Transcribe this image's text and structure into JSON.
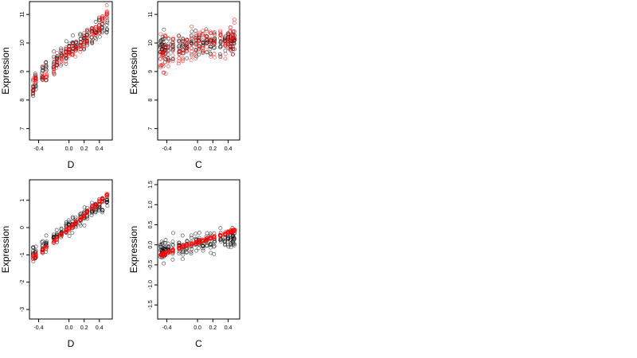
{
  "chart_data": [
    {
      "type": "scatter",
      "xlabel": "D",
      "ylabel": "Expression",
      "xlim": [
        -0.52,
        0.57
      ],
      "ylim": [
        6.6,
        11.45
      ],
      "xticks": [
        -0.4,
        0.0,
        0.2,
        0.4
      ],
      "yticks": [
        7,
        8,
        9,
        10,
        11
      ],
      "xtick_labels": [
        "-0.4",
        "0.0",
        "0.2",
        "0.4"
      ],
      "ytick_labels": [
        "7",
        "8",
        "9",
        "10",
        "11"
      ],
      "x_groups": [
        -0.47,
        -0.44,
        -0.35,
        -0.3,
        -0.2,
        -0.16,
        -0.1,
        -0.04,
        0.0,
        0.05,
        0.09,
        0.15,
        0.2,
        0.24,
        0.3,
        0.35,
        0.4,
        0.44,
        0.5
      ],
      "series": [
        {
          "color": "#000000",
          "trend": [
            [
              -0.47,
              8.6
            ],
            [
              -0.3,
              9.0
            ],
            [
              -0.1,
              9.5
            ],
            [
              0.0,
              9.75
            ],
            [
              0.2,
              10.1
            ],
            [
              0.4,
              10.5
            ],
            [
              0.5,
              10.7
            ]
          ],
          "spread": 0.55
        },
        {
          "color": "#ff0000",
          "trend": [
            [
              -0.47,
              8.55
            ],
            [
              -0.3,
              8.95
            ],
            [
              -0.1,
              9.4
            ],
            [
              0.0,
              9.7
            ],
            [
              0.2,
              10.05
            ],
            [
              0.4,
              10.55
            ],
            [
              0.55,
              11.3
            ]
          ],
          "spread": 0.45
        }
      ]
    },
    {
      "type": "scatter",
      "xlabel": "C",
      "ylabel": "Expression",
      "xlim": [
        -0.52,
        0.55
      ],
      "ylim": [
        6.6,
        11.45
      ],
      "xticks": [
        -0.4,
        0.0,
        0.2,
        0.4
      ],
      "yticks": [
        7,
        8,
        9,
        10,
        11
      ],
      "xtick_labels": [
        "-0.4",
        "0.0",
        "0.2",
        "0.4"
      ],
      "ytick_labels": [
        "7",
        "8",
        "9",
        "10",
        "11"
      ],
      "x_groups": [
        -0.48,
        -0.46,
        -0.44,
        -0.42,
        -0.38,
        -0.32,
        -0.24,
        -0.19,
        -0.14,
        -0.08,
        -0.02,
        0.02,
        0.07,
        0.12,
        0.17,
        0.22,
        0.3,
        0.36,
        0.4,
        0.43,
        0.46,
        0.48
      ],
      "series": [
        {
          "color": "#000000",
          "trend": [
            [
              -0.48,
              9.8
            ],
            [
              0.0,
              9.95
            ],
            [
              0.48,
              10.1
            ]
          ],
          "spread": 0.7
        },
        {
          "color": "#ff0000",
          "trend": [
            [
              -0.48,
              9.6
            ],
            [
              -0.3,
              9.75
            ],
            [
              0.0,
              9.95
            ],
            [
              0.2,
              10.05
            ],
            [
              0.48,
              10.2
            ]
          ],
          "spread": 0.9
        }
      ]
    },
    {
      "type": "scatter",
      "xlabel": "D",
      "ylabel": "Expression",
      "xlim": [
        -0.52,
        0.57
      ],
      "ylim": [
        -3.35,
        1.75
      ],
      "xticks": [
        -0.4,
        0.0,
        0.2,
        0.4
      ],
      "yticks": [
        -3,
        -2,
        -1,
        0,
        1
      ],
      "xtick_labels": [
        "-0.4",
        "0.0",
        "0.2",
        "0.4"
      ],
      "ytick_labels": [
        "-3",
        "-2",
        "-1",
        "0",
        "1"
      ],
      "x_groups": [
        -0.47,
        -0.44,
        -0.35,
        -0.3,
        -0.2,
        -0.16,
        -0.1,
        -0.04,
        0.0,
        0.05,
        0.09,
        0.15,
        0.2,
        0.24,
        0.3,
        0.35,
        0.4,
        0.44,
        0.5
      ],
      "series": [
        {
          "color": "#000000",
          "trend": [
            [
              -0.47,
              -1.0
            ],
            [
              -0.2,
              -0.4
            ],
            [
              0.0,
              0.0
            ],
            [
              0.2,
              0.45
            ],
            [
              0.5,
              0.9
            ]
          ],
          "spread": 0.45
        },
        {
          "color": "#ff0000",
          "trend": [
            [
              -0.47,
              -1.1
            ],
            [
              -0.2,
              -0.5
            ],
            [
              0.0,
              -0.05
            ],
            [
              0.2,
              0.45
            ],
            [
              0.55,
              1.3
            ]
          ],
          "spread": 0.12
        }
      ]
    },
    {
      "type": "scatter",
      "xlabel": "C",
      "ylabel": "Expression",
      "xlim": [
        -0.52,
        0.55
      ],
      "ylim": [
        -1.85,
        1.62
      ],
      "xticks": [
        -0.4,
        0.0,
        0.2,
        0.4
      ],
      "yticks": [
        -1.5,
        -1.0,
        -0.5,
        0.0,
        0.5,
        1.0,
        1.5
      ],
      "xtick_labels": [
        "-0.4",
        "0.0",
        "0.2",
        "0.4"
      ],
      "ytick_labels": [
        "-1.5",
        "-1.0",
        "-0.5",
        "0.0",
        "0.5",
        "1.0",
        "1.5"
      ],
      "x_groups": [
        -0.48,
        -0.46,
        -0.44,
        -0.42,
        -0.38,
        -0.32,
        -0.24,
        -0.19,
        -0.14,
        -0.08,
        -0.02,
        0.02,
        0.07,
        0.12,
        0.17,
        0.22,
        0.3,
        0.36,
        0.4,
        0.43,
        0.46,
        0.48
      ],
      "series": [
        {
          "color": "#000000",
          "trend": [
            [
              -0.48,
              -0.15
            ],
            [
              0.0,
              0.0
            ],
            [
              0.48,
              0.2
            ]
          ],
          "spread": 0.4
        },
        {
          "color": "#ff0000",
          "trend": [
            [
              -0.48,
              -0.25
            ],
            [
              -0.2,
              -0.05
            ],
            [
              0.0,
              0.05
            ],
            [
              0.2,
              0.18
            ],
            [
              0.48,
              0.35
            ]
          ],
          "spread": 0.06
        }
      ]
    }
  ]
}
